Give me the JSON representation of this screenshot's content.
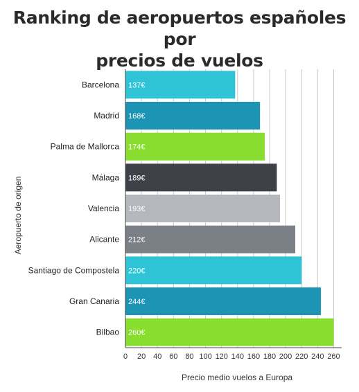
{
  "title_lines": [
    "Ranking de aeropuertos españoles por",
    "precios de vuelos"
  ],
  "chart_data": {
    "type": "bar",
    "orientation": "horizontal",
    "title": "Ranking de aeropuertos españoles por precios de vuelos",
    "xlabel": "Precio medio vuelos a Europa",
    "ylabel": "Aeropuerto de origen",
    "xlim": [
      0,
      270
    ],
    "xticks": [
      0,
      20,
      40,
      60,
      80,
      100,
      120,
      140,
      160,
      180,
      200,
      220,
      240,
      260
    ],
    "grid": true,
    "categories": [
      "Barcelona",
      "Madrid",
      "Palma de Mallorca",
      "Málaga",
      "Valencia",
      "Alicante",
      "Santiago de Compostela",
      "Gran Canaria",
      "Bilbao"
    ],
    "values": [
      137,
      168,
      174,
      189,
      193,
      212,
      220,
      244,
      260
    ],
    "value_labels": [
      "137€",
      "168€",
      "174€",
      "189€",
      "193€",
      "212€",
      "220€",
      "244€",
      "260€"
    ],
    "colors": [
      "#2ec4d6",
      "#1e94b4",
      "#88dd2e",
      "#3f4148",
      "#b4b7bc",
      "#7b7f86",
      "#2ec4d6",
      "#1e94b4",
      "#88dd2e"
    ]
  }
}
